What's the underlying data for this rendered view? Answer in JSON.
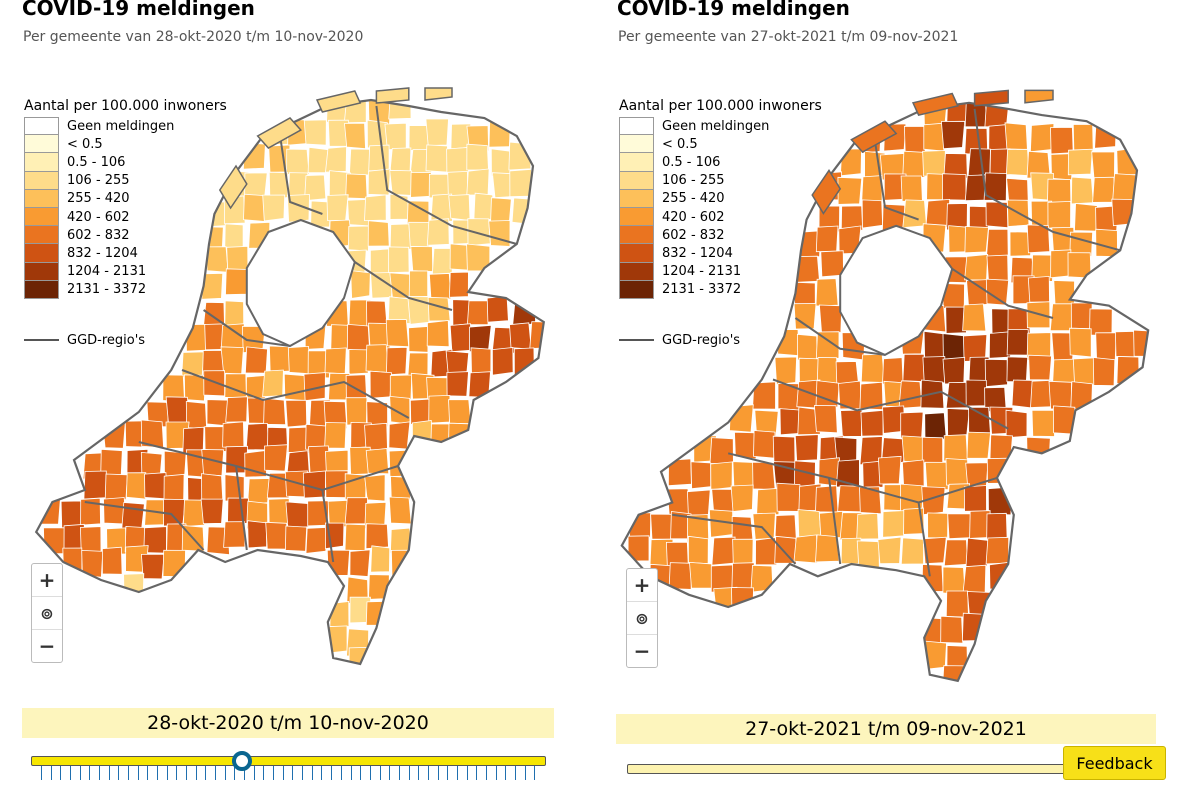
{
  "left": {
    "title": "COVID-19 meldingen",
    "subtitle": "Per gemeente van 28-okt-2020 t/m 10-nov-2020",
    "date_label": "28-okt-2020 t/m 10-nov-2020",
    "slider_fraction": 0.41
  },
  "right": {
    "title": "COVID-19 meldingen",
    "subtitle": "Per gemeente van 27-okt-2021 t/m 09-nov-2021",
    "date_label": "27-okt-2021 t/m 09-nov-2021",
    "feedback_label": "Feedback"
  },
  "legend": {
    "title": "Aantal per 100.000 inwoners",
    "classes": [
      {
        "label": "Geen meldingen",
        "color": "#ffffff"
      },
      {
        "label": "< 0.5",
        "color": "#fffbd9"
      },
      {
        "label": "0.5 - 106",
        "color": "#fff0b5"
      },
      {
        "label": "106 - 255",
        "color": "#fedc8a"
      },
      {
        "label": "255 - 420",
        "color": "#fdc05a"
      },
      {
        "label": "420 - 602",
        "color": "#f99b32"
      },
      {
        "label": "602 - 832",
        "color": "#ea7420"
      },
      {
        "label": "832 - 1204",
        "color": "#cf5313"
      },
      {
        "label": "1204 - 2131",
        "color": "#a03809"
      },
      {
        "label": "2131 - 3372",
        "color": "#6c2405"
      }
    ],
    "ggd_label": "GGD-regio's"
  },
  "zoom": {
    "in": "+",
    "locate": "⊚",
    "out": "−"
  }
}
